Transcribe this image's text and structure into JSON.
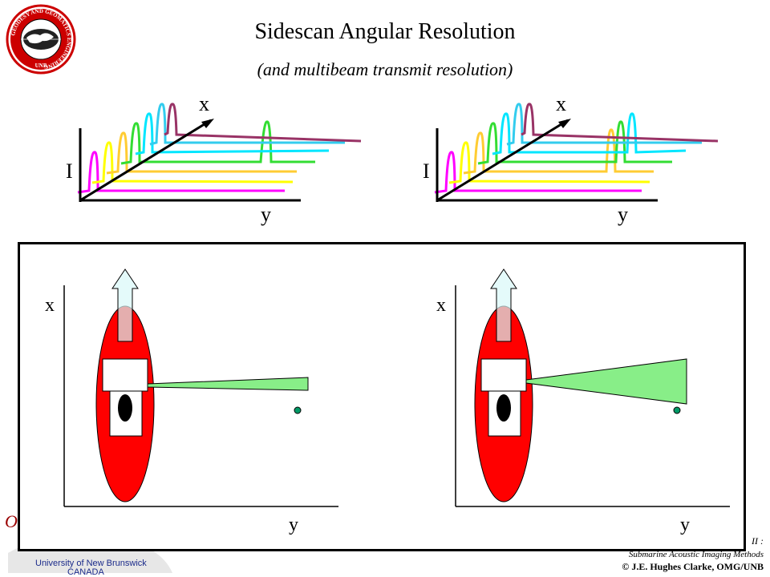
{
  "slide": {
    "title": "Sidescan Angular Resolution",
    "subtitle": "(and multibeam transmit resolution)"
  },
  "logo": {
    "ring_text": "GEODESY AND GEOMATICS ENGINEERING",
    "bottom_text": "UNB"
  },
  "top_plots": [
    {
      "axis_i": "I",
      "axis_x": "x",
      "axis_y": "y"
    },
    {
      "axis_i": "I",
      "axis_x": "x",
      "axis_y": "y"
    }
  ],
  "bottom_panels": [
    {
      "axis_x": "x",
      "axis_y": "y"
    },
    {
      "axis_x": "x",
      "axis_y": "y"
    }
  ],
  "footer": {
    "left_mark": "O",
    "course_fragment": "II :",
    "course_name": "Submarine Acoustic Imaging Methods",
    "copyright": "© J.E. Hughes Clarke, OMG/UNB",
    "university": "University of New Brunswick",
    "country": "CANADA"
  },
  "colors": {
    "magenta": "#ff00ff",
    "yellow": "#ffff00",
    "orange": "#ffcc33",
    "green": "#33dd33",
    "cyan": "#00e6ff",
    "purple": "#993366",
    "ship_red": "#ff0000",
    "beam_green": "#88ee88",
    "arrow_fill": "#d8f8f8"
  }
}
